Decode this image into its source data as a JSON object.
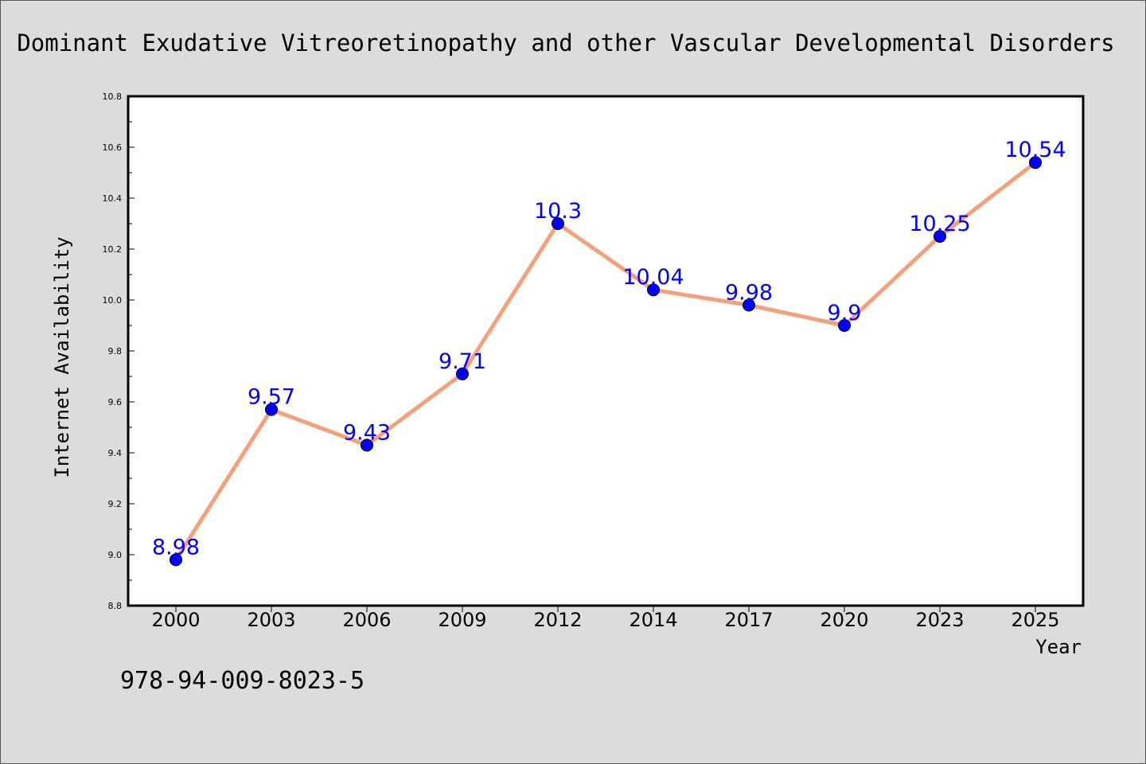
{
  "chart_data": {
    "type": "line",
    "title": "Dominant Exudative Vitreoretinopathy and other Vascular Developmental Disorders",
    "xlabel": "Year",
    "ylabel": "Internet Availability",
    "categories": [
      "2000",
      "2003",
      "2006",
      "2009",
      "2012",
      "2014",
      "2017",
      "2020",
      "2023",
      "2025"
    ],
    "series": [
      {
        "values": [
          8.98,
          9.57,
          9.43,
          9.71,
          10.3,
          10.04,
          9.98,
          9.9,
          10.25,
          10.54
        ],
        "labels": [
          "8.98",
          "9.57",
          "9.43",
          "9.71",
          "10.3",
          "10.04",
          "9.98",
          "9.9",
          "10.25",
          "10.54"
        ]
      }
    ],
    "ylim": [
      8.8,
      10.8
    ],
    "yticks": [
      "8.8",
      "9.0",
      "9.2",
      "9.4",
      "9.6",
      "9.8",
      "10.0",
      "10.2",
      "10.4",
      "10.6",
      "10.8"
    ],
    "grid": false,
    "line_color": "#f4a07a",
    "marker_color": "#0000ff",
    "label_color": "#0000ff"
  },
  "footer": {
    "isbn": "978-94-009-8023-5"
  }
}
